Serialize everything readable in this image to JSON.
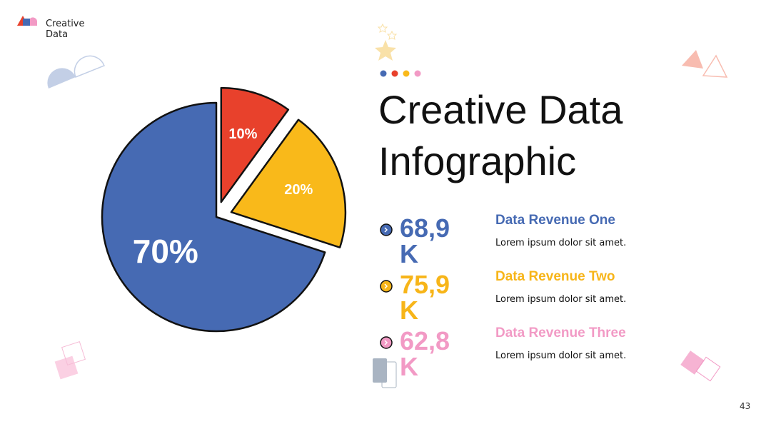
{
  "logo": "Creative Data",
  "title": "Creative Data Infographic",
  "items": [
    {
      "value": "68,9 K",
      "title": "Data Revenue One",
      "text": "Lorem ipsum dolor sit amet.",
      "color": "#466ab3"
    },
    {
      "value": "75,9 K",
      "title": "Data Revenue Two",
      "text": "Lorem ipsum dolor sit amet.",
      "color": "#f7b519"
    },
    {
      "value": "62,8 K",
      "title": "Data Revenue Three",
      "text": "Lorem ipsum dolor sit amet.",
      "color": "#f29ac5"
    }
  ],
  "page_number": "43",
  "chart_data": {
    "type": "pie",
    "values": [
      10,
      20,
      70
    ],
    "value_labels": [
      "10%",
      "20%",
      "70%"
    ],
    "colors": [
      "#e8412c",
      "#f9b91a",
      "#466ab3"
    ]
  }
}
